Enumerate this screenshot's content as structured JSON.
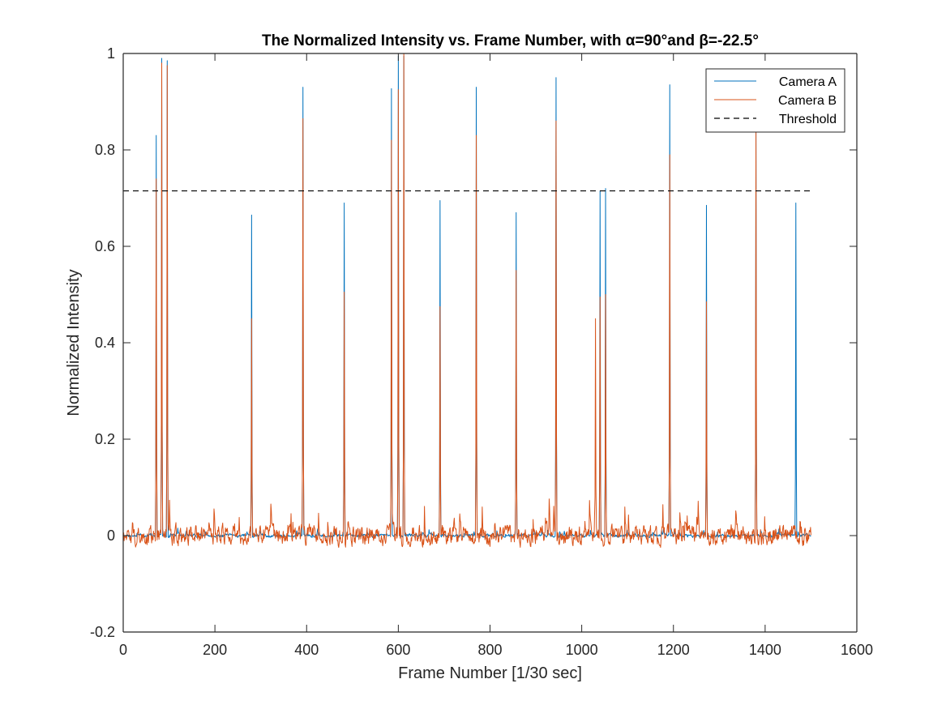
{
  "chart_data": {
    "type": "line",
    "title": "The Normalized Intensity vs. Frame Number, with α=90°and β=-22.5°",
    "xlabel": "Frame Number [1/30 sec]",
    "ylabel": "Normalized Intensity",
    "xlim": [
      0,
      1600
    ],
    "ylim": [
      -0.2,
      1
    ],
    "xticks": [
      0,
      200,
      400,
      600,
      800,
      1000,
      1200,
      1400,
      1600
    ],
    "yticks": [
      -0.2,
      0,
      0.2,
      0.4,
      0.6,
      0.8,
      1
    ],
    "xtick_labels": [
      "0",
      "200",
      "400",
      "600",
      "800",
      "1000",
      "1200",
      "1400",
      "1600"
    ],
    "ytick_labels": [
      "-0.2",
      "0",
      "0.2",
      "0.4",
      "0.6",
      "0.8",
      "1"
    ],
    "grid": false,
    "legend_position": "top-right",
    "frame_range": [
      1,
      1500
    ],
    "series": [
      {
        "name": "Camera A",
        "color": "#0072BD",
        "baseline": 0.0,
        "noise": 0.006,
        "peaks": [
          {
            "x": 72,
            "y": 0.83
          },
          {
            "x": 84,
            "y": 0.99
          },
          {
            "x": 96,
            "y": 0.985
          },
          {
            "x": 280,
            "y": 0.665
          },
          {
            "x": 392,
            "y": 0.93
          },
          {
            "x": 482,
            "y": 0.69
          },
          {
            "x": 585,
            "y": 0.927
          },
          {
            "x": 600,
            "y": 0.995
          },
          {
            "x": 612,
            "y": 0.995
          },
          {
            "x": 691,
            "y": 0.695
          },
          {
            "x": 770,
            "y": 0.93
          },
          {
            "x": 857,
            "y": 0.67
          },
          {
            "x": 944,
            "y": 0.95
          },
          {
            "x": 1040,
            "y": 0.715
          },
          {
            "x": 1052,
            "y": 0.72
          },
          {
            "x": 1192,
            "y": 0.935
          },
          {
            "x": 1272,
            "y": 0.685
          },
          {
            "x": 1380,
            "y": 0.85
          },
          {
            "x": 1467,
            "y": 0.69
          }
        ]
      },
      {
        "name": "Camera B",
        "color": "#D95319",
        "baseline": 0.0,
        "noise": 0.035,
        "peaks": [
          {
            "x": 72,
            "y": 0.74
          },
          {
            "x": 84,
            "y": 0.98
          },
          {
            "x": 96,
            "y": 0.975
          },
          {
            "x": 280,
            "y": 0.45
          },
          {
            "x": 392,
            "y": 0.865
          },
          {
            "x": 482,
            "y": 0.505
          },
          {
            "x": 585,
            "y": 0.82
          },
          {
            "x": 600,
            "y": 0.925
          },
          {
            "x": 612,
            "y": 1.0
          },
          {
            "x": 691,
            "y": 0.475
          },
          {
            "x": 770,
            "y": 0.83
          },
          {
            "x": 857,
            "y": 0.55
          },
          {
            "x": 944,
            "y": 0.86
          },
          {
            "x": 1030,
            "y": 0.45
          },
          {
            "x": 1040,
            "y": 0.495
          },
          {
            "x": 1052,
            "y": 0.5
          },
          {
            "x": 1192,
            "y": 0.79
          },
          {
            "x": 1272,
            "y": 0.485
          },
          {
            "x": 1380,
            "y": 0.84
          }
        ]
      },
      {
        "name": "Threshold",
        "color": "#000000",
        "dashed": true,
        "x": [
          0,
          1500
        ],
        "values": [
          0.715,
          0.715
        ]
      }
    ]
  }
}
